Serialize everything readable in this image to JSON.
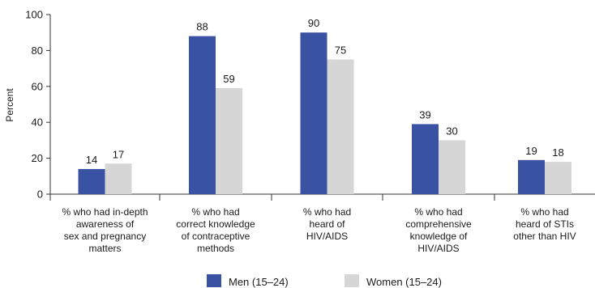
{
  "chart_data": {
    "type": "bar",
    "ylabel": "Percent",
    "xlabel": "",
    "ylim": [
      0,
      100
    ],
    "yticks": [
      0,
      20,
      40,
      60,
      80,
      100
    ],
    "grid": false,
    "legend_position": "bottom",
    "categories": [
      [
        "% who had in-depth",
        "awareness of",
        "sex and pregnancy",
        "matters"
      ],
      [
        "% who had",
        "correct knowledge",
        "of contraceptive",
        "methods"
      ],
      [
        "% who had",
        "heard of",
        "HIV/AIDS"
      ],
      [
        "% who had",
        "comprehensive",
        "knowledge of",
        "HIV/AIDS"
      ],
      [
        "% who had",
        "heard of STIs",
        "other than HIV"
      ]
    ],
    "series": [
      {
        "name": "Men (15–24)",
        "color": "#3a52a4",
        "values": [
          14,
          88,
          90,
          39,
          19
        ]
      },
      {
        "name": "Women (15–24)",
        "color": "#d6d6d6",
        "values": [
          17,
          59,
          75,
          30,
          18
        ]
      }
    ]
  }
}
